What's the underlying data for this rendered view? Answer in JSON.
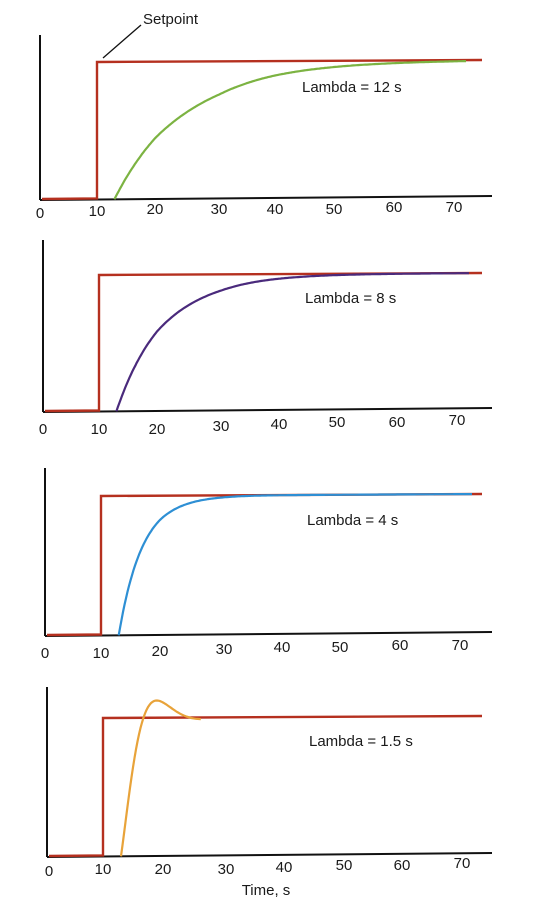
{
  "chart_data": [
    {
      "type": "line",
      "annotation": "Setpoint",
      "label": "Lambda = 12 s",
      "x_ticks": [
        "0",
        "10",
        "20",
        "30",
        "40",
        "50",
        "60",
        "70"
      ],
      "xlim": [
        0,
        75
      ],
      "setpoint_step_time": 10,
      "response": {
        "dead_time_end": 13,
        "time_constant": 12,
        "color": "#7cb342"
      }
    },
    {
      "type": "line",
      "label": "Lambda = 8 s",
      "x_ticks": [
        "0",
        "10",
        "20",
        "30",
        "40",
        "50",
        "60",
        "70"
      ],
      "xlim": [
        0,
        75
      ],
      "setpoint_step_time": 10,
      "response": {
        "dead_time_end": 13,
        "time_constant": 8,
        "color": "#4a2a7c"
      }
    },
    {
      "type": "line",
      "label": "Lambda = 4 s",
      "x_ticks": [
        "0",
        "10",
        "20",
        "30",
        "40",
        "50",
        "60",
        "70"
      ],
      "xlim": [
        0,
        75
      ],
      "setpoint_step_time": 10,
      "response": {
        "dead_time_end": 13,
        "time_constant": 4,
        "color": "#2e8fd4"
      }
    },
    {
      "type": "line",
      "label": "Lambda = 1.5 s",
      "x_ticks": [
        "0",
        "10",
        "20",
        "30",
        "40",
        "50",
        "60",
        "70"
      ],
      "xlim": [
        0,
        75
      ],
      "setpoint_step_time": 10,
      "response": {
        "dead_time_end": 13,
        "time_constant": 1.5,
        "oscillatory": true,
        "overshoot_peak_time": 17.5,
        "color": "#e8a33a"
      }
    }
  ],
  "xlabel": "Time, s",
  "colors": {
    "setpoint": "#b5301f",
    "axis": "#111111"
  }
}
